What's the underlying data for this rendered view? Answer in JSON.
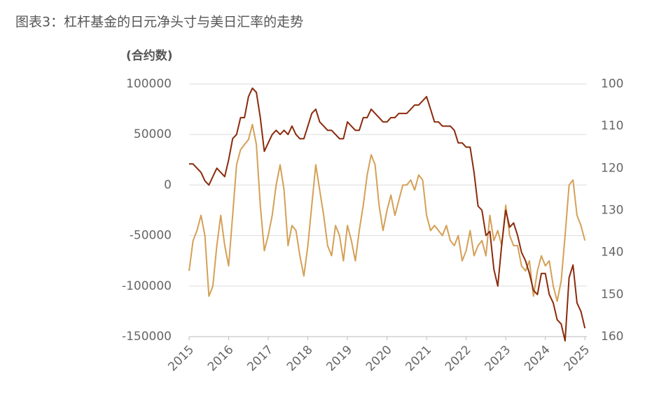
{
  "chart_data": {
    "type": "line",
    "title": "图表3：杠杆基金的日元净头寸与美日汇率的走势",
    "y_label": "(合约数)",
    "xlim": [
      2015,
      2025.05
    ],
    "xticks": [
      2015,
      2016,
      2017,
      2018,
      2019,
      2020,
      2021,
      2022,
      2023,
      2024,
      2025
    ],
    "ylim": [
      -150000,
      100000
    ],
    "yticks": [
      -150000,
      -100000,
      -50000,
      0,
      50000,
      100000
    ],
    "y2lim": [
      100,
      160
    ],
    "y2ticks": [
      100,
      110,
      120,
      130,
      140,
      150,
      160
    ],
    "y2_inverted": true,
    "grid": true,
    "x": [
      2015.0,
      2015.1,
      2015.2,
      2015.3,
      2015.4,
      2015.5,
      2015.6,
      2015.7,
      2015.8,
      2015.9,
      2016.0,
      2016.1,
      2016.2,
      2016.3,
      2016.4,
      2016.5,
      2016.6,
      2016.7,
      2016.8,
      2016.9,
      2017.0,
      2017.1,
      2017.2,
      2017.3,
      2017.4,
      2017.5,
      2017.6,
      2017.7,
      2017.8,
      2017.9,
      2018.0,
      2018.1,
      2018.2,
      2018.3,
      2018.4,
      2018.5,
      2018.6,
      2018.7,
      2018.8,
      2018.9,
      2019.0,
      2019.1,
      2019.2,
      2019.3,
      2019.4,
      2019.5,
      2019.6,
      2019.7,
      2019.8,
      2019.9,
      2020.0,
      2020.1,
      2020.2,
      2020.3,
      2020.4,
      2020.5,
      2020.6,
      2020.7,
      2020.8,
      2020.9,
      2021.0,
      2021.1,
      2021.2,
      2021.3,
      2021.4,
      2021.5,
      2021.6,
      2021.7,
      2021.8,
      2021.9,
      2022.0,
      2022.1,
      2022.2,
      2022.3,
      2022.4,
      2022.5,
      2022.6,
      2022.7,
      2022.8,
      2022.9,
      2023.0,
      2023.1,
      2023.2,
      2023.3,
      2023.4,
      2023.5,
      2023.6,
      2023.7,
      2023.8,
      2023.9,
      2024.0,
      2024.1,
      2024.2,
      2024.3,
      2024.4,
      2024.5,
      2024.6,
      2024.7,
      2024.8,
      2024.9,
      2025.0
    ],
    "series": [
      {
        "color": "#d4a056",
        "axis": "y",
        "values": [
          -85000,
          -55000,
          -45000,
          -30000,
          -50000,
          -110000,
          -100000,
          -60000,
          -30000,
          -60000,
          -80000,
          -30000,
          20000,
          35000,
          40000,
          45000,
          60000,
          40000,
          -20000,
          -65000,
          -50000,
          -30000,
          0,
          20000,
          -5000,
          -60000,
          -40000,
          -45000,
          -70000,
          -90000,
          -60000,
          -20000,
          20000,
          -5000,
          -30000,
          -60000,
          -70000,
          -40000,
          -50000,
          -75000,
          -40000,
          -55000,
          -75000,
          -45000,
          -20000,
          10000,
          30000,
          20000,
          -20000,
          -45000,
          -25000,
          -10000,
          -30000,
          -15000,
          0,
          0,
          5000,
          -5000,
          10000,
          5000,
          -30000,
          -45000,
          -40000,
          -45000,
          -50000,
          -40000,
          -55000,
          -60000,
          -50000,
          -75000,
          -65000,
          -45000,
          -70000,
          -60000,
          -55000,
          -70000,
          -30000,
          -55000,
          -45000,
          -60000,
          -20000,
          -50000,
          -60000,
          -60000,
          -80000,
          -85000,
          -75000,
          -110000,
          -85000,
          -70000,
          -80000,
          -75000,
          -100000,
          -115000,
          -95000,
          -50000,
          0,
          5000,
          -30000,
          -40000,
          -55000
        ]
      },
      {
        "color": "#8b2a0c",
        "axis": "y2",
        "values": [
          119,
          119,
          120,
          121,
          123,
          124,
          122,
          120,
          121,
          122,
          118,
          113,
          112,
          108,
          108,
          103,
          101,
          102,
          108,
          116,
          114,
          112,
          111,
          112,
          111,
          112,
          110,
          112,
          113,
          113,
          110,
          107,
          106,
          109,
          110,
          111,
          111,
          112,
          113,
          113,
          109,
          110,
          111,
          111,
          108,
          108,
          106,
          107,
          108,
          109,
          109,
          108,
          108,
          107,
          107,
          107,
          106,
          105,
          105,
          104,
          103,
          106,
          109,
          109,
          110,
          110,
          110,
          111,
          114,
          114,
          115,
          115,
          121,
          129,
          130,
          136,
          135,
          144,
          148,
          138,
          130,
          134,
          133,
          136,
          140,
          142,
          145,
          149,
          150,
          145,
          145,
          150,
          152,
          156,
          157,
          161,
          146,
          143,
          152,
          154,
          158
        ]
      }
    ]
  }
}
